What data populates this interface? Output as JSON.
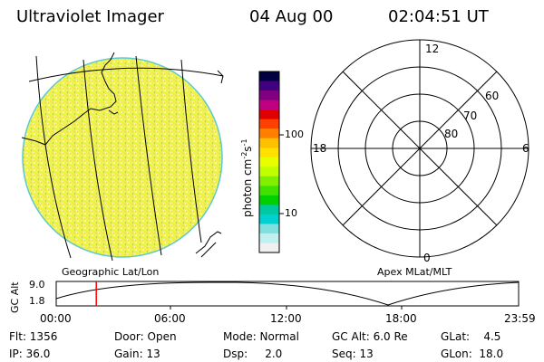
{
  "header": {
    "instrument": "Ultraviolet Imager",
    "date": "04 Aug 00",
    "time": "02:04:51 UT"
  },
  "earth_map": {
    "label": "Geographic Lat/Lon"
  },
  "colorbar": {
    "label": "photon cm",
    "exp1": "-2",
    "mid": "s",
    "exp2": "-1",
    "tick_labels": [
      "100",
      "10"
    ],
    "colors": [
      "#000040",
      "#400080",
      "#800080",
      "#c00080",
      "#e00000",
      "#ff4000",
      "#ff8000",
      "#ffc000",
      "#ffe000",
      "#e8ff00",
      "#c0ff00",
      "#80f000",
      "#40e000",
      "#00d000",
      "#00c8a0",
      "#00d0d0",
      "#80e0e0",
      "#c0f0f0",
      "#f0f0f0"
    ]
  },
  "polar_plot": {
    "label": "Apex MLat/MLT",
    "mlt_labels": [
      "12",
      "18",
      "6",
      "0"
    ],
    "lat_labels": [
      "60",
      "70",
      "80"
    ]
  },
  "altitude_plot": {
    "y_label": "GC Alt",
    "y_ticks": [
      "9.0",
      "1.8"
    ],
    "x_ticks": [
      "00:00",
      "06:00",
      "12:00",
      "18:00",
      "23:59"
    ],
    "current_time_hours": 2.08,
    "marker_color": "#ff0000"
  },
  "footer": {
    "row1": [
      "Flt: 1356",
      "Door: Open",
      "Mode: Normal",
      "GC Alt: 6.0 Re",
      "GLat:    4.5"
    ],
    "row2": [
      "IP: 36.0",
      "Gain: 13",
      "Dsp:     2.0",
      "Seq: 13",
      "GLon:  18.0"
    ]
  }
}
